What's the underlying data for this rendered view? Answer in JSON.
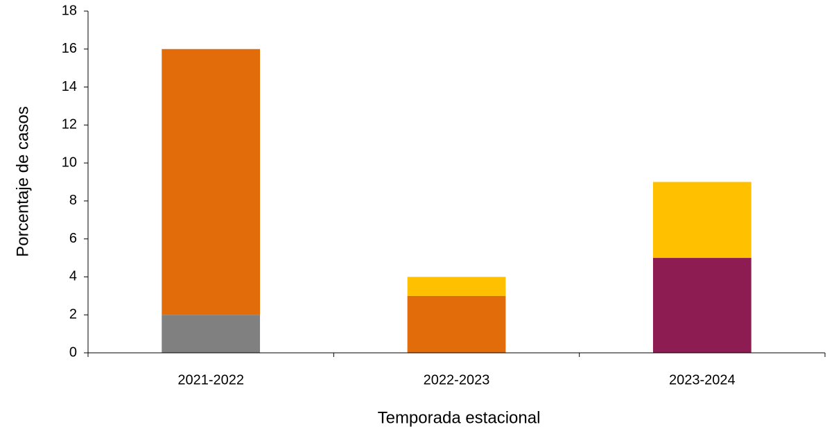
{
  "chart_data": {
    "type": "stacked_bar",
    "x_label": "Temporada estacional",
    "y_label": "Porcentaje de casos",
    "categories": [
      "2021-2022",
      "2022-2023",
      "2023-2024"
    ],
    "series": [
      {
        "color": "#808080",
        "values": [
          2,
          0,
          0
        ]
      },
      {
        "color": "#8c1c52",
        "values": [
          0,
          0,
          5
        ]
      },
      {
        "color": "#e36c0a",
        "values": [
          14,
          3,
          0
        ]
      },
      {
        "color": "#ffc000",
        "values": [
          0,
          1,
          4
        ]
      }
    ],
    "ylim": [
      0,
      18
    ],
    "yticks": [
      0,
      2,
      4,
      6,
      8,
      10,
      12,
      14,
      16,
      18
    ],
    "grid": false
  }
}
